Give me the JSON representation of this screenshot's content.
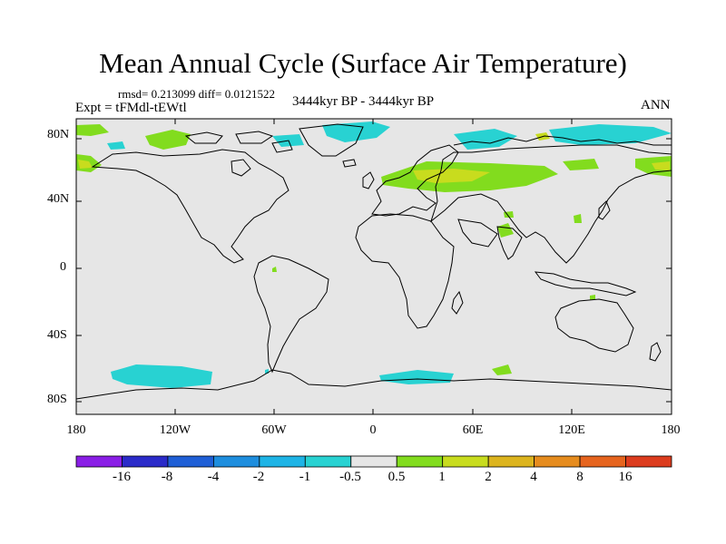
{
  "title": "Mean Annual Cycle (Surface Air Temperature)",
  "stats": "rmsd= 0.213099 diff= 0.0121522",
  "experiment": "Expt = tFMdl-tEWtl",
  "period": "3444kyr BP - 3444kyr BP",
  "season": "ANN",
  "lat_labels": [
    "80N",
    "40N",
    "0",
    "40S",
    "80S"
  ],
  "lon_labels": [
    "180",
    "120W",
    "60W",
    "0",
    "60E",
    "120E",
    "180"
  ],
  "colorbar": {
    "labels": [
      "-16",
      "-8",
      "-4",
      "-2",
      "-1",
      "-0.5",
      "0.5",
      "1",
      "2",
      "4",
      "8",
      "16"
    ],
    "colors": [
      "#8a1ee6",
      "#2b2bc9",
      "#1f5fd6",
      "#1e8ede",
      "#1eb4e6",
      "#28d2d2",
      "#e6e6e6",
      "#82dc1e",
      "#c8dc1e",
      "#dcb41e",
      "#e68c1e",
      "#e6641e",
      "#dc3c1e"
    ]
  },
  "map": {
    "background": "#e6e6e6",
    "projection": "cylindrical equidistant",
    "lon_range": [
      -180,
      180
    ],
    "lat_range": [
      -90,
      90
    ]
  }
}
